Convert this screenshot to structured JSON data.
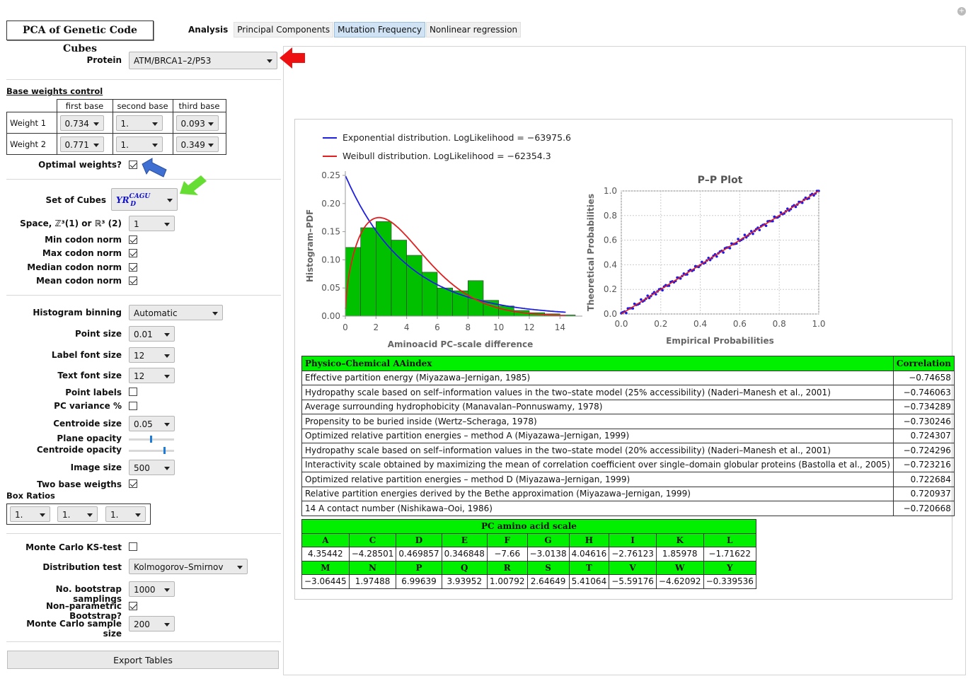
{
  "app": {
    "title": "PCA of Genetic Code Cubes"
  },
  "tabs": {
    "label": "Analysis",
    "items": [
      "Principal Components",
      "Mutation Frequency",
      "Nonlinear regression"
    ],
    "active": 1
  },
  "controls": {
    "protein": {
      "label": "Protein",
      "value": "ATM/BRCA1–2/P53"
    },
    "base_weights": {
      "title": "Base weights control",
      "headers": [
        "first base",
        "second base",
        "third base"
      ],
      "rows": [
        {
          "label": "Weight 1",
          "values": [
            "0.734",
            "1.",
            "0.093"
          ]
        },
        {
          "label": "Weight 2",
          "values": [
            "0.771",
            "1.",
            "0.349"
          ]
        }
      ],
      "optimal_label": "Optimal weights?",
      "optimal": true
    },
    "set_of_cubes": {
      "label": "Set of Cubes",
      "value_main": "YR",
      "value_sup": "CAGU",
      "value_sub": "D"
    },
    "space": {
      "label": "Space, ℤ³(1) or ℝ³ (2)",
      "value": "1"
    },
    "norms": [
      {
        "label": "Min codon norm",
        "checked": true
      },
      {
        "label": "Max codon norm",
        "checked": true
      },
      {
        "label": "Median codon norm",
        "checked": true
      },
      {
        "label": "Mean codon norm",
        "checked": true
      }
    ],
    "histogram_binning": {
      "label": "Histogram binning",
      "value": "Automatic"
    },
    "point_size": {
      "label": "Point size",
      "value": "0.01"
    },
    "label_font_size": {
      "label": "Label font size",
      "value": "12"
    },
    "text_font_size": {
      "label": "Text font size",
      "value": "12"
    },
    "point_labels": {
      "label": "Point labels",
      "checked": false
    },
    "pc_variance": {
      "label": "PC variance %",
      "checked": false
    },
    "centroide_size": {
      "label": "Centroide size",
      "value": "0.05"
    },
    "plane_opacity": {
      "label": "Plane opacity",
      "value": 0.5
    },
    "centroide_opacity": {
      "label": "Centroide opacity",
      "value": 0.9
    },
    "image_size": {
      "label": "Image size",
      "value": "500"
    },
    "two_base": {
      "label": "Two base weigths",
      "checked": true
    },
    "box_ratios": {
      "label": "Box Ratios",
      "values": [
        "1.",
        "1.",
        "1."
      ]
    },
    "monte_carlo_ks": {
      "label": "Monte Carlo KS-test",
      "checked": false
    },
    "distribution_test": {
      "label": "Distribution test",
      "value": "Kolmogorov–Smirnov"
    },
    "bootstrap": {
      "label": "No. bootstrap samplings",
      "value": "1000"
    },
    "nonparam": {
      "label": "Non–parametric Bootstrap?",
      "checked": true
    },
    "mc_sample": {
      "label": "Monte Carlo sample size",
      "value": "200"
    },
    "export_label": "Export Tables"
  },
  "legend": {
    "exp": "Exponential distribution. LogLikelihood = −63975.6",
    "weibull": "Weibull distribution. LogLikelihood = −62354.3"
  },
  "colors": {
    "exp": "#2020e0",
    "weibull": "#e02020",
    "bars": "#00c000",
    "accent_tab": "#cfe3f5",
    "table_header": "#00f000"
  },
  "chart_data": [
    {
      "type": "bar",
      "xlabel": "Aminoacid PC–scale difference",
      "ylabel": "Histogram–PDF",
      "xlim": [
        0,
        15
      ],
      "ylim": [
        0,
        0.25
      ],
      "xticks": [
        "0",
        "2",
        "4",
        "6",
        "8",
        "10",
        "12",
        "14"
      ],
      "yticks": [
        "0.00",
        "0.05",
        "0.10",
        "0.15",
        "0.20",
        "0.25"
      ],
      "bin_width": 1,
      "bin_starts": [
        0,
        1,
        2,
        3,
        4,
        5,
        6,
        7,
        8,
        9,
        10,
        11,
        12,
        13,
        14
      ],
      "values": [
        0.122,
        0.157,
        0.168,
        0.135,
        0.108,
        0.078,
        0.05,
        0.045,
        0.063,
        0.028,
        0.018,
        0.01,
        0.006,
        0.004,
        0.002
      ],
      "series": [
        {
          "name": "Exponential distribution",
          "rate": 0.25
        },
        {
          "name": "Weibull distribution",
          "shape": 1.55,
          "scale": 4.3
        }
      ]
    },
    {
      "type": "scatter",
      "title": "P–P Plot",
      "xlabel": "Empirical Probabilities",
      "ylabel": "Theoretical Probabilities",
      "xlim": [
        0,
        1
      ],
      "ylim": [
        0,
        1
      ],
      "xticks": [
        "0.0",
        "0.2",
        "0.4",
        "0.6",
        "0.8",
        "1.0"
      ],
      "yticks": [
        "0.0",
        "0.2",
        "0.4",
        "0.6",
        "0.8",
        "1.0"
      ],
      "grid": true
    }
  ],
  "corr_table": {
    "headers": [
      "Physico–Chemical AAindex",
      "Correlation"
    ],
    "rows": [
      [
        "Effective partition energy (Miyazawa–Jernigan, 1985)",
        "−0.74658"
      ],
      [
        "Hydropathy scale based on self–information values in the two–state model (25% accessibility) (Naderi–Manesh et al., 2001)",
        "−0.746063"
      ],
      [
        "Average surrounding hydrophobicity (Manavalan–Ponnuswamy, 1978)",
        "−0.734289"
      ],
      [
        "Propensity to be buried inside (Wertz–Scheraga, 1978)",
        "−0.730246"
      ],
      [
        "Optimized relative partition energies – method A (Miyazawa–Jernigan, 1999)",
        "0.724307"
      ],
      [
        "Hydropathy scale based on self–information values in the two–state model (20% accessibility) (Naderi–Manesh et al., 2001)",
        "−0.724296"
      ],
      [
        "Interactivity scale obtained by maximizing the mean of correlation coefficient over single–domain globular proteins (Bastolla et al., 2005)",
        "−0.723216"
      ],
      [
        "Optimized relative partition energies – method D (Miyazawa–Jernigan, 1999)",
        "0.722684"
      ],
      [
        "Relative partition energies derived by the Bethe approximation (Miyazawa–Jernigan, 1999)",
        "0.720937"
      ],
      [
        "14 A contact number (Nishikawa–Ooi, 1986)",
        "−0.720668"
      ]
    ]
  },
  "pc_table": {
    "title": "PC amino acid scale",
    "letters1": [
      "A",
      "C",
      "D",
      "E",
      "F",
      "G",
      "H",
      "I",
      "K",
      "L"
    ],
    "values1": [
      "4.35442",
      "−4.28501",
      "0.469857",
      "0.346848",
      "−7.66",
      "−3.0138",
      "4.04616",
      "−2.76123",
      "1.85978",
      "−1.71622"
    ],
    "letters2": [
      "M",
      "N",
      "P",
      "Q",
      "R",
      "S",
      "T",
      "V",
      "W",
      "Y"
    ],
    "values2": [
      "−3.06445",
      "1.97488",
      "6.99639",
      "3.93952",
      "1.00792",
      "2.64649",
      "5.41064",
      "−5.59176",
      "−4.62092",
      "−0.339536"
    ]
  }
}
